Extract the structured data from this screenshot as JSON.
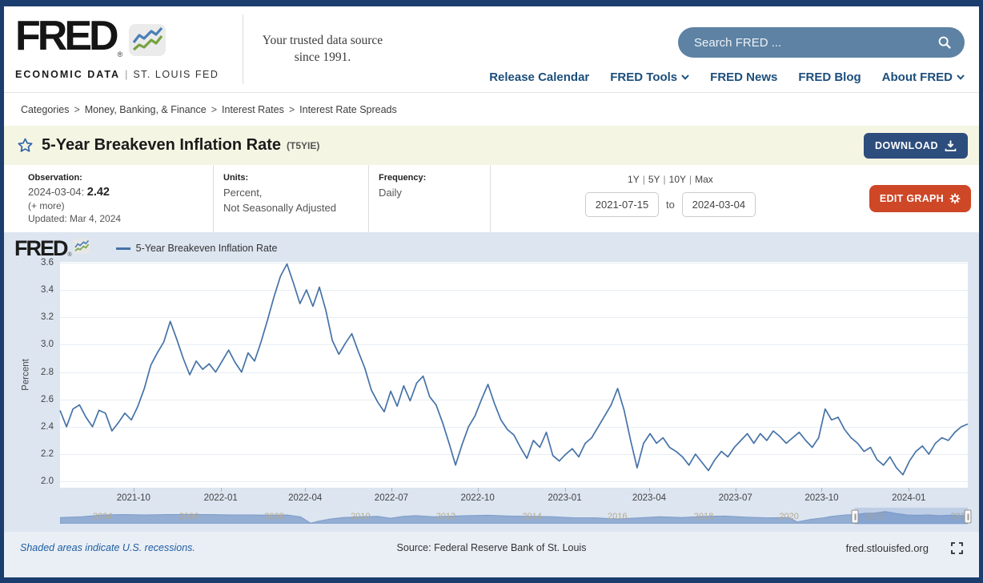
{
  "header": {
    "logo": {
      "brand": "FRED",
      "registered": "®",
      "sub": "ECONOMIC DATA",
      "pipe": "|",
      "org": "ST. LOUIS FED"
    },
    "tagline": "Your trusted data source since 1991.",
    "search": {
      "placeholder": "Search FRED ..."
    },
    "nav": [
      {
        "label": "Release Calendar",
        "dropdown": false
      },
      {
        "label": "FRED Tools",
        "dropdown": true
      },
      {
        "label": "FRED News",
        "dropdown": false
      },
      {
        "label": "FRED Blog",
        "dropdown": false
      },
      {
        "label": "About FRED",
        "dropdown": true
      }
    ]
  },
  "breadcrumb": {
    "items": [
      "Categories",
      "Money, Banking, & Finance",
      "Interest Rates",
      "Interest Rate Spreads"
    ],
    "separator": ">"
  },
  "series_header": {
    "title": "5-Year Breakeven Inflation Rate",
    "ticker": "(T5YIE)",
    "download_label": "DOWNLOAD"
  },
  "meta": {
    "observation": {
      "label": "Observation:",
      "date": "2024-03-04:",
      "value": "2.42",
      "more": "(+ more)",
      "updated": "Updated: Mar 4, 2024"
    },
    "units": {
      "label": "Units:",
      "line1": "Percent,",
      "line2": "Not Seasonally Adjusted"
    },
    "frequency": {
      "label": "Frequency:",
      "value": "Daily"
    }
  },
  "controls": {
    "ranges": [
      "1Y",
      "5Y",
      "10Y",
      "Max"
    ],
    "date_from": "2021-07-15",
    "to_label": "to",
    "date_to": "2024-03-04",
    "edit_graph_label": "EDIT GRAPH"
  },
  "chart_data": {
    "type": "line",
    "title": "5-Year Breakeven Inflation Rate",
    "legend": "5-Year Breakeven Inflation Rate",
    "ylabel": "Percent",
    "line_color": "#4572a7",
    "grid": true,
    "ylim": [
      2.0,
      3.6
    ],
    "y_plot_range": [
      1.955,
      3.605
    ],
    "y_ticks": [
      "3.6",
      "3.4",
      "3.2",
      "3.0",
      "2.8",
      "2.6",
      "2.4",
      "2.2",
      "2.0"
    ],
    "x_range": [
      "2021-07-15",
      "2024-03-04"
    ],
    "x_ticks": [
      {
        "label": "2021-10",
        "f": 0.081
      },
      {
        "label": "2022-01",
        "f": 0.177
      },
      {
        "label": "2022-04",
        "f": 0.27
      },
      {
        "label": "2022-07",
        "f": 0.365
      },
      {
        "label": "2022-10",
        "f": 0.46
      },
      {
        "label": "2023-01",
        "f": 0.556
      },
      {
        "label": "2023-04",
        "f": 0.649
      },
      {
        "label": "2023-07",
        "f": 0.744
      },
      {
        "label": "2023-10",
        "f": 0.839
      },
      {
        "label": "2024-01",
        "f": 0.935
      }
    ],
    "interval": "approx-weekly samples read from plotted daily line",
    "values": [
      2.52,
      2.4,
      2.53,
      2.56,
      2.47,
      2.4,
      2.52,
      2.5,
      2.37,
      2.43,
      2.5,
      2.45,
      2.55,
      2.68,
      2.85,
      2.94,
      3.02,
      3.17,
      3.04,
      2.9,
      2.78,
      2.88,
      2.82,
      2.86,
      2.8,
      2.88,
      2.96,
      2.87,
      2.8,
      2.94,
      2.88,
      3.02,
      3.18,
      3.35,
      3.5,
      3.59,
      3.45,
      3.3,
      3.4,
      3.28,
      3.42,
      3.25,
      3.03,
      2.93,
      3.01,
      3.08,
      2.95,
      2.83,
      2.67,
      2.58,
      2.51,
      2.66,
      2.55,
      2.7,
      2.59,
      2.72,
      2.77,
      2.62,
      2.56,
      2.43,
      2.28,
      2.12,
      2.27,
      2.4,
      2.48,
      2.6,
      2.71,
      2.57,
      2.45,
      2.38,
      2.34,
      2.25,
      2.17,
      2.3,
      2.25,
      2.36,
      2.19,
      2.15,
      2.2,
      2.24,
      2.18,
      2.28,
      2.32,
      2.4,
      2.48,
      2.56,
      2.68,
      2.52,
      2.3,
      2.1,
      2.28,
      2.35,
      2.28,
      2.32,
      2.25,
      2.22,
      2.18,
      2.12,
      2.2,
      2.14,
      2.08,
      2.16,
      2.22,
      2.18,
      2.25,
      2.3,
      2.35,
      2.28,
      2.35,
      2.3,
      2.37,
      2.33,
      2.28,
      2.32,
      2.36,
      2.3,
      2.25,
      2.32,
      2.53,
      2.45,
      2.47,
      2.38,
      2.32,
      2.28,
      2.22,
      2.25,
      2.16,
      2.12,
      2.18,
      2.1,
      2.05,
      2.15,
      2.22,
      2.26,
      2.2,
      2.28,
      2.32,
      2.3,
      2.36,
      2.4,
      2.42
    ],
    "navigator": {
      "x_range": [
        "2003",
        "2024-03"
      ],
      "selection": [
        0.876,
        1.0
      ],
      "fill_color": "#93add3",
      "edge_color": "#7e9cc9",
      "year_labels": [
        {
          "label": "2004",
          "f": 0.047
        },
        {
          "label": "2006",
          "f": 0.142
        },
        {
          "label": "2008",
          "f": 0.236
        },
        {
          "label": "2010",
          "f": 0.331
        },
        {
          "label": "2012",
          "f": 0.425
        },
        {
          "label": "2014",
          "f": 0.52
        },
        {
          "label": "2016",
          "f": 0.614
        },
        {
          "label": "2018",
          "f": 0.709
        },
        {
          "label": "2020",
          "f": 0.803
        },
        {
          "label": "2022",
          "f": 0.897
        },
        {
          "label": "2024",
          "f": 0.992
        }
      ],
      "points": [
        [
          0.0,
          1.7
        ],
        [
          0.024,
          1.9
        ],
        [
          0.047,
          2.4
        ],
        [
          0.071,
          2.5
        ],
        [
          0.094,
          2.4
        ],
        [
          0.118,
          2.5
        ],
        [
          0.142,
          2.5
        ],
        [
          0.165,
          2.5
        ],
        [
          0.189,
          2.4
        ],
        [
          0.213,
          2.4
        ],
        [
          0.236,
          2.3
        ],
        [
          0.25,
          2.4
        ],
        [
          0.265,
          1.9
        ],
        [
          0.276,
          0.15
        ],
        [
          0.283,
          0.6
        ],
        [
          0.298,
          1.3
        ],
        [
          0.312,
          1.7
        ],
        [
          0.331,
          1.9
        ],
        [
          0.35,
          2.0
        ],
        [
          0.364,
          1.5
        ],
        [
          0.378,
          2.0
        ],
        [
          0.392,
          2.2
        ],
        [
          0.411,
          1.9
        ],
        [
          0.425,
          2.0
        ],
        [
          0.449,
          2.2
        ],
        [
          0.472,
          2.3
        ],
        [
          0.496,
          2.1
        ],
        [
          0.52,
          2.0
        ],
        [
          0.543,
          1.9
        ],
        [
          0.567,
          1.6
        ],
        [
          0.59,
          1.6
        ],
        [
          0.614,
          1.3
        ],
        [
          0.638,
          1.6
        ],
        [
          0.661,
          1.9
        ],
        [
          0.685,
          1.7
        ],
        [
          0.709,
          2.0
        ],
        [
          0.732,
          2.1
        ],
        [
          0.756,
          1.8
        ],
        [
          0.779,
          1.6
        ],
        [
          0.803,
          1.7
        ],
        [
          0.812,
          0.5
        ],
        [
          0.827,
          1.2
        ],
        [
          0.841,
          1.6
        ],
        [
          0.85,
          2.0
        ],
        [
          0.865,
          2.4
        ],
        [
          0.876,
          2.5
        ],
        [
          0.888,
          2.9
        ],
        [
          0.897,
          2.9
        ],
        [
          0.909,
          3.3
        ],
        [
          0.921,
          2.8
        ],
        [
          0.933,
          2.4
        ],
        [
          0.945,
          2.3
        ],
        [
          0.957,
          2.4
        ],
        [
          0.968,
          2.2
        ],
        [
          0.98,
          2.3
        ],
        [
          0.992,
          2.2
        ],
        [
          1.0,
          2.4
        ]
      ]
    }
  },
  "footer": {
    "recession_note": "Shaded areas indicate U.S. recessions.",
    "source": "Source: Federal Reserve Bank of St. Louis",
    "site": "fred.stlouisfed.org"
  }
}
